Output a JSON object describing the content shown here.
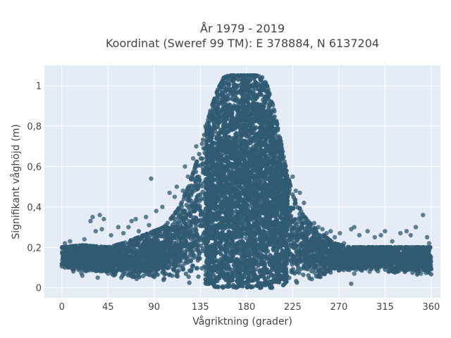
{
  "chart_data": {
    "type": "scatter",
    "title_line1": "År 1979 - 2019",
    "title_line2": "Koordinat (Sweref 99 TM): E 378884, N 6137204",
    "xlabel": "Vågriktning (grader)",
    "ylabel": "Signifikant våghöjd (m)",
    "xlim": [
      -17,
      369
    ],
    "ylim": [
      -0.05,
      1.1
    ],
    "xticks": [
      0,
      45,
      90,
      135,
      180,
      225,
      270,
      315,
      360
    ],
    "xtick_labels": [
      "0",
      "45",
      "90",
      "135",
      "180",
      "225",
      "270",
      "315",
      "360"
    ],
    "yticks": [
      0,
      0.2,
      0.4,
      0.6,
      0.8,
      1
    ],
    "ytick_labels": [
      "0",
      "0,2",
      "0,4",
      "0,6",
      "0,8",
      "1"
    ],
    "grid": true,
    "marker_color": "#2f5a72",
    "plot_background": "#e5ecf6",
    "envelope": {
      "direction": [
        0,
        20,
        45,
        60,
        80,
        100,
        115,
        125,
        135,
        145,
        152,
        158,
        163,
        170,
        180,
        190,
        196,
        200,
        205,
        212,
        218,
        225,
        235,
        245,
        255,
        265,
        280,
        300,
        330,
        360
      ],
      "lower": [
        0.08,
        0.07,
        0.06,
        0.05,
        0.04,
        0.03,
        0.03,
        0.02,
        0.02,
        0.01,
        0.0,
        0.0,
        0.0,
        0.0,
        0.0,
        0.0,
        0.0,
        0.0,
        0.0,
        0.01,
        0.01,
        0.02,
        0.02,
        0.03,
        0.05,
        0.07,
        0.08,
        0.08,
        0.07,
        0.06
      ],
      "upper": [
        0.2,
        0.21,
        0.2,
        0.22,
        0.26,
        0.3,
        0.4,
        0.52,
        0.68,
        0.88,
        0.98,
        1.04,
        1.05,
        1.05,
        1.05,
        1.05,
        1.04,
        1.0,
        0.92,
        0.76,
        0.6,
        0.46,
        0.36,
        0.3,
        0.26,
        0.22,
        0.2,
        0.2,
        0.2,
        0.2
      ]
    },
    "outliers": [
      {
        "x": 3,
        "y": 0.22
      },
      {
        "x": 8,
        "y": 0.23
      },
      {
        "x": 14,
        "y": 0.19
      },
      {
        "x": 22,
        "y": 0.24
      },
      {
        "x": 28,
        "y": 0.33
      },
      {
        "x": 30,
        "y": 0.35
      },
      {
        "x": 33,
        "y": 0.28
      },
      {
        "x": 37,
        "y": 0.36
      },
      {
        "x": 39,
        "y": 0.29
      },
      {
        "x": 41,
        "y": 0.34
      },
      {
        "x": 48,
        "y": 0.26
      },
      {
        "x": 55,
        "y": 0.3
      },
      {
        "x": 60,
        "y": 0.27
      },
      {
        "x": 65,
        "y": 0.3
      },
      {
        "x": 68,
        "y": 0.33
      },
      {
        "x": 72,
        "y": 0.34
      },
      {
        "x": 75,
        "y": 0.28
      },
      {
        "x": 82,
        "y": 0.35
      },
      {
        "x": 85,
        "y": 0.31
      },
      {
        "x": 87,
        "y": 0.54
      },
      {
        "x": 92,
        "y": 0.38
      },
      {
        "x": 98,
        "y": 0.4
      },
      {
        "x": 105,
        "y": 0.47
      },
      {
        "x": 110,
        "y": 0.45
      },
      {
        "x": 112,
        "y": 0.5
      },
      {
        "x": 118,
        "y": 0.48
      },
      {
        "x": 120,
        "y": 0.6
      },
      {
        "x": 123,
        "y": 0.55
      },
      {
        "x": 128,
        "y": 0.64
      },
      {
        "x": 131,
        "y": 0.7
      },
      {
        "x": 140,
        "y": 0.8
      },
      {
        "x": 225,
        "y": 0.55
      },
      {
        "x": 228,
        "y": 0.48
      },
      {
        "x": 232,
        "y": 0.47
      },
      {
        "x": 236,
        "y": 0.42
      },
      {
        "x": 246,
        "y": 0.32
      },
      {
        "x": 250,
        "y": 0.3
      },
      {
        "x": 254,
        "y": 0.29
      },
      {
        "x": 258,
        "y": 0.27
      },
      {
        "x": 262,
        "y": 0.28
      },
      {
        "x": 266,
        "y": 0.25
      },
      {
        "x": 271,
        "y": 0.27
      },
      {
        "x": 275,
        "y": 0.22
      },
      {
        "x": 282,
        "y": 0.29
      },
      {
        "x": 285,
        "y": 0.3
      },
      {
        "x": 290,
        "y": 0.26
      },
      {
        "x": 298,
        "y": 0.28
      },
      {
        "x": 305,
        "y": 0.25
      },
      {
        "x": 311,
        "y": 0.26
      },
      {
        "x": 315,
        "y": 0.28
      },
      {
        "x": 322,
        "y": 0.23
      },
      {
        "x": 330,
        "y": 0.27
      },
      {
        "x": 336,
        "y": 0.28
      },
      {
        "x": 340,
        "y": 0.26
      },
      {
        "x": 345,
        "y": 0.3
      },
      {
        "x": 352,
        "y": 0.36
      },
      {
        "x": 356,
        "y": 0.25
      },
      {
        "x": 358,
        "y": 0.22
      },
      {
        "x": 320,
        "y": 0.1
      },
      {
        "x": 333,
        "y": 0.09
      },
      {
        "x": 350,
        "y": 0.07
      },
      {
        "x": 300,
        "y": 0.08
      },
      {
        "x": 285,
        "y": 0.07
      },
      {
        "x": 282,
        "y": 0.02
      },
      {
        "x": 20,
        "y": 0.06
      },
      {
        "x": 35,
        "y": 0.05
      },
      {
        "x": 45,
        "y": 0.07
      },
      {
        "x": 58,
        "y": 0.05
      }
    ]
  }
}
